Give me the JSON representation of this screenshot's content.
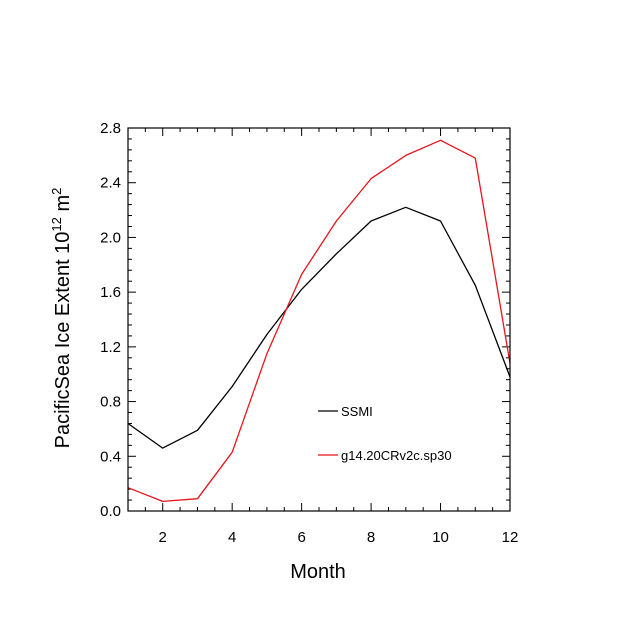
{
  "chart_data": {
    "type": "line",
    "title": "",
    "xlabel": "Month",
    "ylabel_main": "PacificSea Ice Extent 10",
    "ylabel_exp1": "12",
    "ylabel_unit": " m",
    "ylabel_exp2": "2",
    "xlim": [
      1,
      12
    ],
    "ylim": [
      0.0,
      2.8
    ],
    "xticks": [
      2,
      4,
      6,
      8,
      10,
      12
    ],
    "xtick_labels": [
      "2",
      "4",
      "6",
      "8",
      "10",
      "12"
    ],
    "yticks": [
      0.0,
      0.4,
      0.8,
      1.2,
      1.6,
      2.0,
      2.4,
      2.8
    ],
    "ytick_labels": [
      "0.0",
      "0.4",
      "0.8",
      "1.2",
      "1.6",
      "2.0",
      "2.4",
      "2.8"
    ],
    "x": [
      1,
      2,
      3,
      4,
      5,
      6,
      7,
      8,
      9,
      10,
      11,
      12
    ],
    "series": [
      {
        "name": "SSMI",
        "color": "#000000",
        "values": [
          0.64,
          0.46,
          0.59,
          0.91,
          1.29,
          1.62,
          1.88,
          2.12,
          2.22,
          2.12,
          1.65,
          0.98
        ]
      },
      {
        "name": "g14.20CRv2c.sp30",
        "color": "#e8141c",
        "values": [
          0.17,
          0.07,
          0.09,
          0.43,
          1.15,
          1.73,
          2.12,
          2.43,
          2.6,
          2.71,
          2.58,
          1.08
        ]
      }
    ],
    "legend_placement": "center-right inside plot"
  }
}
